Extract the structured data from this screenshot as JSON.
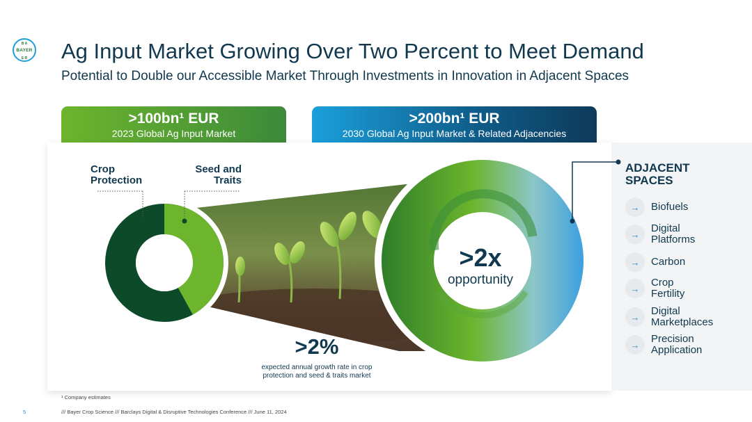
{
  "brand": {
    "logo_text": "BAYER",
    "accent": "#1f9fd9",
    "green": "#6cb52d",
    "navy": "#10384f"
  },
  "header": {
    "title": "Ag Input Market Growing Over Two Percent to Meet Demand",
    "subtitle": "Potential to Double our Accessible Market Through Investments in Innovation in Adjacent Spaces"
  },
  "banners": {
    "left": {
      "value": ">100bn¹ EUR",
      "caption": "2023 Global Ag Input Market"
    },
    "right": {
      "value": ">200bn¹ EUR",
      "caption": "2030 Global Ag Input Market & Related Adjacencies"
    }
  },
  "donut": {
    "label_left": [
      "Crop",
      "Protection"
    ],
    "label_right": [
      "Seed and",
      "Traits"
    ],
    "seed_traits_share": 0.42
  },
  "opportunity": {
    "value": ">2x",
    "caption": "opportunity"
  },
  "growth": {
    "value": ">2%",
    "caption_line1": "expected annual growth rate in crop",
    "caption_line2": "protection and seed & traits market"
  },
  "adjacent": {
    "title_line1": "ADJACENT",
    "title_line2": "SPACES",
    "arrow_glyph": "→",
    "items": [
      [
        "Biofuels"
      ],
      [
        "Digital",
        "Platforms"
      ],
      [
        "Carbon"
      ],
      [
        "Crop",
        "Fertility"
      ],
      [
        "Digital",
        "Marketplaces"
      ],
      [
        "Precision",
        "Application"
      ]
    ]
  },
  "footer": {
    "footnote": "¹ Company estimates",
    "line": "/// Bayer Crop Science /// Barclays Digital & Disruptive Technologies Conference  /// June 11, 2024",
    "page": "5"
  }
}
